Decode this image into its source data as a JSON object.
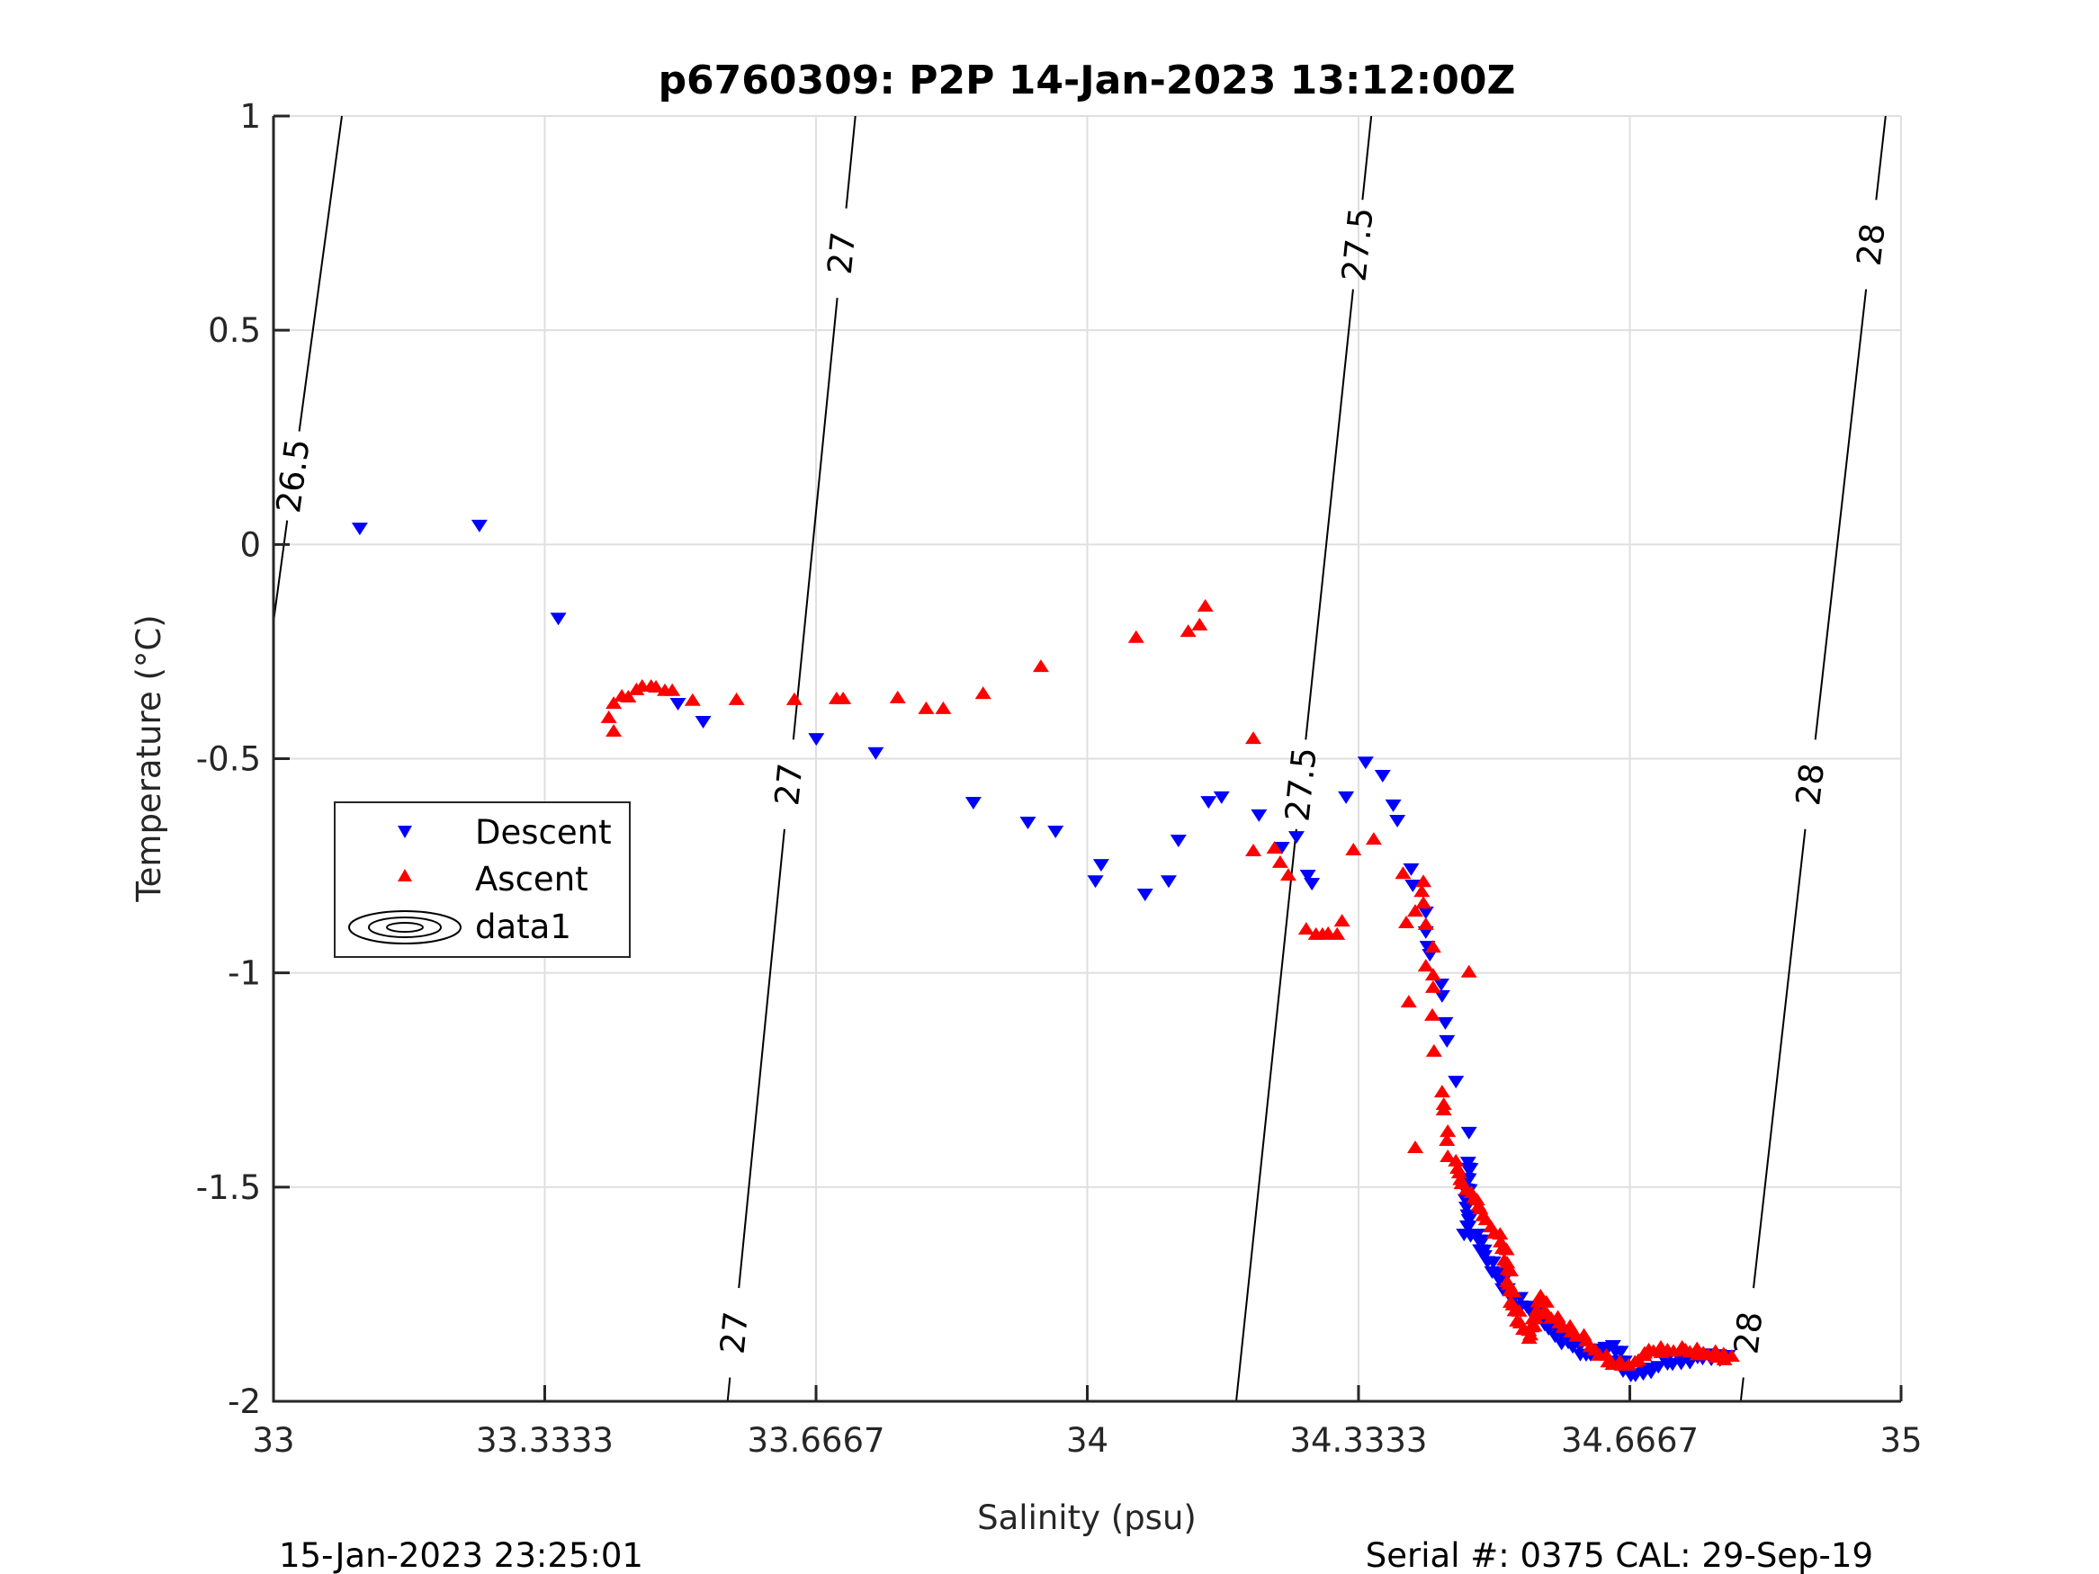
{
  "chart_data": {
    "type": "scatter",
    "title": "p6760309: P2P 14-Jan-2023 13:12:00Z",
    "xlabel": "Salinity (psu)",
    "ylabel": "Temperature (°C)",
    "xlim": [
      33,
      35
    ],
    "ylim": [
      -2,
      1
    ],
    "grid": true,
    "x_ticks": [
      33,
      33.3333,
      33.6667,
      34,
      34.3333,
      34.6667,
      35
    ],
    "x_tick_labels": [
      "33",
      "33.3333",
      "33.6667",
      "34",
      "34.3333",
      "34.6667",
      "35"
    ],
    "y_ticks": [
      1,
      0.5,
      0,
      -0.5,
      -1,
      -1.5,
      -2
    ],
    "y_tick_labels": [
      "1",
      "0.5",
      "0",
      "-0.5",
      "-1",
      "-1.5",
      "-2"
    ],
    "legend": {
      "placement": "left",
      "entries": [
        {
          "label": "Descent",
          "marker": "triangle-down",
          "color": "#0000ff"
        },
        {
          "label": "Ascent",
          "marker": "triangle-up",
          "color": "#ff0000"
        },
        {
          "label": "data1",
          "marker": "contour",
          "color": "#000000"
        }
      ]
    },
    "series": [
      {
        "name": "Descent",
        "marker": "triangle-down",
        "color": "#0000ff",
        "points": [
          [
            33.106,
            0.036
          ],
          [
            33.253,
            0.043
          ],
          [
            33.35,
            -0.174
          ],
          [
            33.497,
            -0.373
          ],
          [
            33.528,
            -0.415
          ],
          [
            33.667,
            -0.455
          ],
          [
            33.74,
            -0.488
          ],
          [
            33.86,
            -0.604
          ],
          [
            33.927,
            -0.65
          ],
          [
            33.961,
            -0.671
          ],
          [
            34.01,
            -0.787
          ],
          [
            34.017,
            -0.749
          ],
          [
            34.071,
            -0.818
          ],
          [
            34.1,
            -0.787
          ],
          [
            34.112,
            -0.692
          ],
          [
            34.149,
            -0.602
          ],
          [
            34.165,
            -0.591
          ],
          [
            34.211,
            -0.633
          ],
          [
            34.239,
            -0.709
          ],
          [
            34.257,
            -0.684
          ],
          [
            34.271,
            -0.774
          ],
          [
            34.276,
            -0.793
          ],
          [
            34.318,
            -0.591
          ],
          [
            34.342,
            -0.51
          ],
          [
            34.363,
            -0.541
          ],
          [
            34.376,
            -0.61
          ],
          [
            34.381,
            -0.646
          ],
          [
            34.398,
            -0.759
          ],
          [
            34.4,
            -0.797
          ],
          [
            34.416,
            -0.86
          ],
          [
            34.416,
            -0.906
          ],
          [
            34.418,
            -0.94
          ],
          [
            34.421,
            -0.959
          ],
          [
            34.435,
            -1.028
          ],
          [
            34.436,
            -1.055
          ],
          [
            34.44,
            -1.118
          ],
          [
            34.442,
            -1.16
          ],
          [
            34.453,
            -1.255
          ],
          [
            34.469,
            -1.374
          ],
          [
            34.468,
            -1.444
          ],
          [
            34.466,
            -1.549
          ],
          [
            34.469,
            -1.578
          ],
          [
            34.463,
            -1.612
          ],
          [
            34.479,
            -1.612
          ],
          [
            34.488,
            -1.662
          ],
          [
            34.503,
            -1.704
          ],
          [
            34.518,
            -1.752
          ],
          [
            34.54,
            -1.78
          ],
          [
            34.562,
            -1.822
          ],
          [
            34.591,
            -1.864
          ],
          [
            34.613,
            -1.893
          ],
          [
            34.646,
            -1.872
          ],
          [
            34.668,
            -1.941
          ],
          [
            34.713,
            -1.914
          ],
          [
            34.75,
            -1.899
          ],
          [
            34.787,
            -1.895
          ]
        ]
      },
      {
        "name": "Ascent",
        "marker": "triangle-up",
        "color": "#ff0000",
        "points": [
          [
            33.418,
            -0.434
          ],
          [
            33.412,
            -0.402
          ],
          [
            33.418,
            -0.369
          ],
          [
            33.428,
            -0.352
          ],
          [
            33.436,
            -0.354
          ],
          [
            33.446,
            -0.337
          ],
          [
            33.453,
            -0.329
          ],
          [
            33.464,
            -0.329
          ],
          [
            33.47,
            -0.331
          ],
          [
            33.481,
            -0.339
          ],
          [
            33.49,
            -0.339
          ],
          [
            33.515,
            -0.362
          ],
          [
            33.569,
            -0.36
          ],
          [
            33.64,
            -0.36
          ],
          [
            33.692,
            -0.358
          ],
          [
            33.7,
            -0.358
          ],
          [
            33.767,
            -0.356
          ],
          [
            33.802,
            -0.381
          ],
          [
            33.823,
            -0.381
          ],
          [
            33.872,
            -0.346
          ],
          [
            33.943,
            -0.283
          ],
          [
            34.06,
            -0.215
          ],
          [
            34.124,
            -0.201
          ],
          [
            34.138,
            -0.186
          ],
          [
            34.145,
            -0.142
          ],
          [
            34.204,
            -0.451
          ],
          [
            34.204,
            -0.713
          ],
          [
            34.23,
            -0.707
          ],
          [
            34.237,
            -0.74
          ],
          [
            34.247,
            -0.77
          ],
          [
            34.269,
            -0.896
          ],
          [
            34.281,
            -0.908
          ],
          [
            34.289,
            -0.908
          ],
          [
            34.296,
            -0.906
          ],
          [
            34.307,
            -0.908
          ],
          [
            34.313,
            -0.877
          ],
          [
            34.327,
            -0.711
          ],
          [
            34.352,
            -0.686
          ],
          [
            34.388,
            -0.766
          ],
          [
            34.413,
            -0.785
          ],
          [
            34.411,
            -0.808
          ],
          [
            34.413,
            -0.835
          ],
          [
            34.403,
            -0.854
          ],
          [
            34.392,
            -0.881
          ],
          [
            34.416,
            -0.885
          ],
          [
            34.425,
            -0.938
          ],
          [
            34.416,
            -0.982
          ],
          [
            34.425,
            -1.003
          ],
          [
            34.469,
            -0.996
          ],
          [
            34.425,
            -1.032
          ],
          [
            34.395,
            -1.066
          ],
          [
            34.424,
            -1.097
          ],
          [
            34.426,
            -1.181
          ],
          [
            34.436,
            -1.276
          ],
          [
            34.438,
            -1.305
          ],
          [
            34.438,
            -1.318
          ],
          [
            34.443,
            -1.368
          ],
          [
            34.442,
            -1.389
          ],
          [
            34.403,
            -1.406
          ],
          [
            34.443,
            -1.427
          ],
          [
            34.453,
            -1.437
          ],
          [
            34.457,
            -1.465
          ],
          [
            34.46,
            -1.49
          ],
          [
            34.472,
            -1.511
          ],
          [
            34.479,
            -1.528
          ],
          [
            34.483,
            -1.549
          ],
          [
            34.49,
            -1.574
          ],
          [
            34.496,
            -1.591
          ],
          [
            34.508,
            -1.626
          ],
          [
            34.516,
            -1.675
          ],
          [
            34.518,
            -1.725
          ],
          [
            34.523,
            -1.773
          ],
          [
            34.532,
            -1.815
          ],
          [
            34.543,
            -1.851
          ],
          [
            34.557,
            -1.752
          ],
          [
            34.565,
            -1.794
          ],
          [
            34.58,
            -1.815
          ],
          [
            34.595,
            -1.836
          ],
          [
            34.613,
            -1.857
          ],
          [
            34.624,
            -1.878
          ],
          [
            34.64,
            -1.906
          ],
          [
            34.657,
            -1.914
          ],
          [
            34.673,
            -1.906
          ],
          [
            34.69,
            -1.878
          ],
          [
            34.713,
            -1.878
          ],
          [
            34.735,
            -1.878
          ],
          [
            34.757,
            -1.885
          ],
          [
            34.792,
            -1.893
          ]
        ]
      }
    ],
    "isopycnals": [
      {
        "level": "26.5",
        "line": [
          [
            33.084,
            1.0
          ],
          [
            33.0,
            -0.18
          ]
        ],
        "label_positions": [
          [
            33.012,
            0.16
          ]
        ]
      },
      {
        "level": "27",
        "line": [
          [
            33.715,
            1.0
          ],
          [
            33.558,
            -2.0
          ]
        ],
        "label_positions": [
          [
            33.684,
            0.68
          ],
          [
            33.618,
            -0.56
          ],
          [
            33.575,
            -1.84
          ]
        ]
      },
      {
        "level": "27.5",
        "line": [
          [
            34.349,
            1.0
          ],
          [
            34.183,
            -2.0
          ]
        ],
        "label_positions": [
          [
            34.317,
            0.7
          ],
          [
            34.234,
            -0.56
          ]
        ]
      },
      {
        "level": "28",
        "line": [
          [
            34.981,
            1.0
          ],
          [
            34.803,
            -2.0
          ]
        ],
        "label_positions": [
          [
            34.954,
            0.7
          ],
          [
            34.869,
            -0.56
          ],
          [
            34.814,
            -1.84
          ]
        ]
      }
    ]
  },
  "footer": {
    "timestamp": "15-Jan-2023 23:25:01",
    "serial": "Serial #: 0375  CAL: 29-Sep-19"
  }
}
